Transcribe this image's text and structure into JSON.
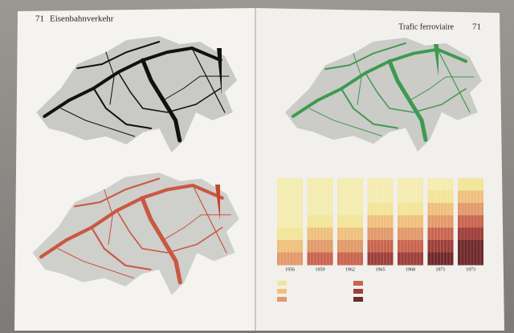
{
  "left_page": {
    "number": "71",
    "title": "Eisenbahnverkehr"
  },
  "right_page": {
    "number": "71",
    "title": "Trafic ferroviaire",
    "chart": {
      "years": [
        "1956",
        "1959",
        "1962",
        "1965",
        "1968",
        "1971",
        "1973"
      ]
    }
  }
}
